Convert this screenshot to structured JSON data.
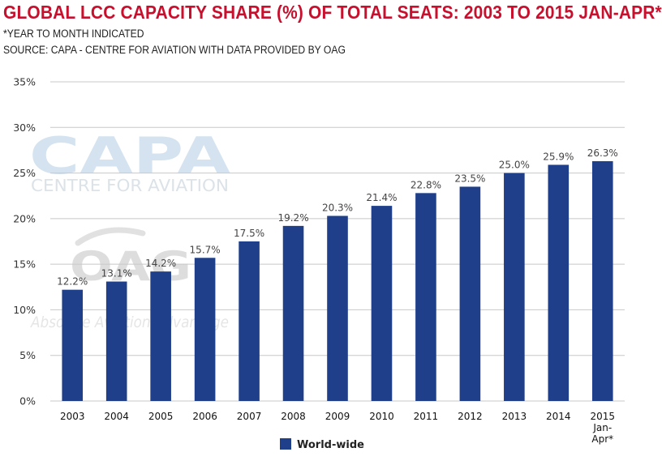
{
  "header": {
    "title": "GLOBAL LCC CAPACITY SHARE (%) OF TOTAL SEATS: 2003 TO 2015 JAN-APR*",
    "footnote": "*YEAR TO MONTH INDICATED",
    "source": "SOURCE: CAPA - CENTRE FOR AVIATION WITH DATA PROVIDED BY OAG"
  },
  "watermarks": {
    "capa_logo": "CAPA",
    "capa_tagline": "CENTRE FOR AVIATION",
    "oag_logo": "OAG",
    "oag_tagline": "Absolute Aviation Advantage"
  },
  "colors": {
    "title": "#c8102e",
    "bar": "#1f3f8a",
    "grid": "#c8c8c8"
  },
  "chart_data": {
    "type": "bar",
    "categories": [
      "2003",
      "2004",
      "2005",
      "2006",
      "2007",
      "2008",
      "2009",
      "2010",
      "2011",
      "2012",
      "2013",
      "2014",
      "2015 Jan-Apr*"
    ],
    "category_lines": [
      [
        "2003"
      ],
      [
        "2004"
      ],
      [
        "2005"
      ],
      [
        "2006"
      ],
      [
        "2007"
      ],
      [
        "2008"
      ],
      [
        "2009"
      ],
      [
        "2010"
      ],
      [
        "2011"
      ],
      [
        "2012"
      ],
      [
        "2013"
      ],
      [
        "2014"
      ],
      [
        "2015",
        "Jan-",
        "Apr*"
      ]
    ],
    "series": [
      {
        "name": "World-wide",
        "values": [
          12.2,
          13.1,
          14.2,
          15.7,
          17.5,
          19.2,
          20.3,
          21.4,
          22.8,
          23.5,
          25.0,
          25.9,
          26.3
        ],
        "data_labels": [
          "12.2%",
          "13.1%",
          "14.2%",
          "15.7%",
          "17.5%",
          "19.2%",
          "20.3%",
          "21.4%",
          "22.8%",
          "23.5%",
          "25.0%",
          "25.9%",
          "26.3%"
        ]
      }
    ],
    "ylim": [
      0,
      35
    ],
    "yticks": [
      0,
      5,
      10,
      15,
      20,
      25,
      30,
      35
    ],
    "ytick_labels": [
      "0%",
      "5%",
      "10%",
      "15%",
      "20%",
      "25%",
      "30%",
      "35%"
    ],
    "grid": true,
    "legend_position": "bottom-center"
  }
}
